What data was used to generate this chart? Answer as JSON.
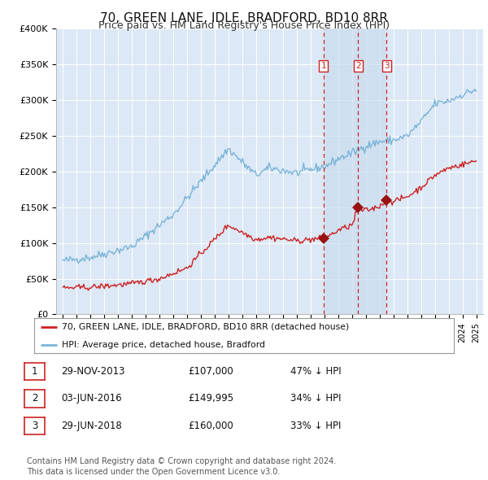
{
  "title": "70, GREEN LANE, IDLE, BRADFORD, BD10 8RR",
  "subtitle": "Price paid vs. HM Land Registry's House Price Index (HPI)",
  "title_fontsize": 11,
  "subtitle_fontsize": 9,
  "background_color": "#ffffff",
  "plot_bg_color": "#dce8f5",
  "grid_color": "#ffffff",
  "hpi_line_color": "#7ab4d8",
  "price_line_color": "#cc2222",
  "sale_marker_color": "#991111",
  "dashed_line_color": "#cc2222",
  "shade_color": "#c6d9ee",
  "ylim": [
    0,
    400000
  ],
  "yticks": [
    0,
    50000,
    100000,
    150000,
    200000,
    250000,
    300000,
    350000,
    400000
  ],
  "xlim_start": 1994.5,
  "xlim_end": 2025.5,
  "legend_entries": [
    "70, GREEN LANE, IDLE, BRADFORD, BD10 8RR (detached house)",
    "HPI: Average price, detached house, Bradford"
  ],
  "sales": [
    {
      "label": "1",
      "date": "29-NOV-2013",
      "year": 2013.91,
      "price": 107000,
      "hpi_pct": "47% ↓ HPI"
    },
    {
      "label": "2",
      "date": "03-JUN-2016",
      "year": 2016.42,
      "price": 149995,
      "hpi_pct": "34% ↓ HPI"
    },
    {
      "label": "3",
      "date": "29-JUN-2018",
      "year": 2018.49,
      "price": 160000,
      "hpi_pct": "33% ↓ HPI"
    }
  ],
  "footer": "Contains HM Land Registry data © Crown copyright and database right 2024.\nThis data is licensed under the Open Government Licence v3.0.",
  "footer_fontsize": 7
}
